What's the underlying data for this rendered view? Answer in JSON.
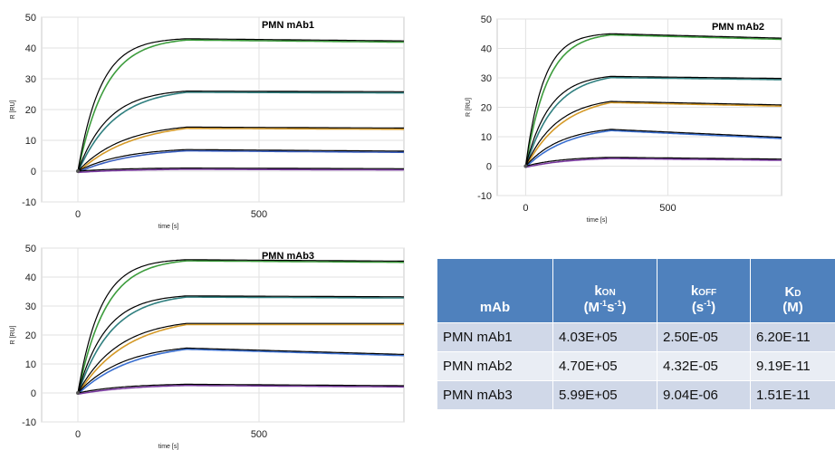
{
  "chart_data": [
    {
      "type": "line",
      "title": "PMN  mAb1",
      "xlabel": "time [s]",
      "ylabel": "R [RU]",
      "xlim": [
        -100,
        900
      ],
      "ylim": [
        -10,
        50
      ],
      "xticks": [
        "0",
        "500"
      ],
      "yticks": [
        "-10",
        "0",
        "10",
        "20",
        "30",
        "40",
        "50"
      ],
      "grid": true,
      "association_end": 300,
      "series": [
        {
          "plateau": 43,
          "end": 42.3,
          "k": 0.016,
          "color": "#3c9c3c",
          "fit_color": "#000000"
        },
        {
          "plateau": 26,
          "end": 25.8,
          "k": 0.012,
          "color": "#2f7f7f",
          "fit_color": "#000000"
        },
        {
          "plateau": 14.3,
          "end": 14.0,
          "k": 0.008,
          "color": "#d59a28",
          "fit_color": "#000000"
        },
        {
          "plateau": 7,
          "end": 6.5,
          "k": 0.008,
          "color": "#3a5fc0",
          "fit_color": "#000000"
        },
        {
          "plateau": 1,
          "end": 0.8,
          "k": 0.008,
          "color": "#7a3aa0",
          "fit_color": "#000000"
        }
      ]
    },
    {
      "type": "line",
      "title": "PMN  mAb2",
      "xlabel": "time [s]",
      "ylabel": "R [RU]",
      "xlim": [
        -100,
        900
      ],
      "ylim": [
        -10,
        50
      ],
      "xticks": [
        "0",
        "500"
      ],
      "yticks": [
        "-10",
        "0",
        "10",
        "20",
        "30",
        "40",
        "50"
      ],
      "grid": true,
      "association_end": 300,
      "series": [
        {
          "plateau": 45,
          "end": 43.5,
          "k": 0.016,
          "color": "#3c9c3c",
          "fit_color": "#000000"
        },
        {
          "plateau": 30.5,
          "end": 29.8,
          "k": 0.012,
          "color": "#2f7f7f",
          "fit_color": "#000000"
        },
        {
          "plateau": 22,
          "end": 20.8,
          "k": 0.009,
          "color": "#d59a28",
          "fit_color": "#000000"
        },
        {
          "plateau": 12.5,
          "end": 9.8,
          "k": 0.008,
          "color": "#3a6fd0",
          "fit_color": "#000000"
        },
        {
          "plateau": 3,
          "end": 2.4,
          "k": 0.008,
          "color": "#7a3aa0",
          "fit_color": "#000000"
        }
      ]
    },
    {
      "type": "line",
      "title": "PMN  mAb3",
      "xlabel": "time [s]",
      "ylabel": "R [RU]",
      "xlim": [
        -100,
        900
      ],
      "ylim": [
        -10,
        50
      ],
      "xticks": [
        "0",
        "500"
      ],
      "yticks": [
        "-10",
        "0",
        "10",
        "20",
        "30",
        "40",
        "50"
      ],
      "grid": true,
      "association_end": 300,
      "series": [
        {
          "plateau": 46,
          "end": 45.5,
          "k": 0.016,
          "color": "#3c9c3c",
          "fit_color": "#000000"
        },
        {
          "plateau": 33.5,
          "end": 33.2,
          "k": 0.013,
          "color": "#2f7f7f",
          "fit_color": "#000000"
        },
        {
          "plateau": 24,
          "end": 24,
          "k": 0.009,
          "color": "#d59a28",
          "fit_color": "#000000"
        },
        {
          "plateau": 15.5,
          "end": 13.3,
          "k": 0.008,
          "color": "#3a6fd0",
          "fit_color": "#000000"
        },
        {
          "plateau": 3,
          "end": 2.5,
          "k": 0.008,
          "color": "#7a3aa0",
          "fit_color": "#000000"
        }
      ]
    },
    {
      "type": "table",
      "columns": [
        "mAb",
        "kON (M-1s-1)",
        "kOFF (s-1)",
        "KD (M)"
      ],
      "rows": [
        [
          "PMN mAb1",
          "4.03E+05",
          "2.50E-05",
          "6.20E-11"
        ],
        [
          "PMN mAb2",
          "4.70E+05",
          "4.32E-05",
          "9.19E-11"
        ],
        [
          "PMN mAb3",
          "5.99E+05",
          "9.04E-06",
          "1.51E-11"
        ]
      ]
    }
  ],
  "table": {
    "headers": [
      {
        "main": "mAb"
      },
      {
        "main": "k",
        "sub": "ON",
        "unit_open": "(M",
        "sup1": "-1",
        "unit_mid": "s",
        "sup2": "-1",
        "unit_close": ")"
      },
      {
        "main": "k",
        "sub": "OFF",
        "unit_open": "(s",
        "sup1": "-1",
        "unit_close": ")"
      },
      {
        "main": "K",
        "sub": "D",
        "unit_open": "(M)"
      }
    ],
    "rows": [
      [
        "PMN mAb1",
        "4.03E+05",
        "2.50E-05",
        "6.20E-11"
      ],
      [
        "PMN mAb2",
        "4.70E+05",
        "4.32E-05",
        "9.19E-11"
      ],
      [
        "PMN mAb3",
        "5.99E+05",
        "9.04E-06",
        "1.51E-11"
      ]
    ]
  }
}
